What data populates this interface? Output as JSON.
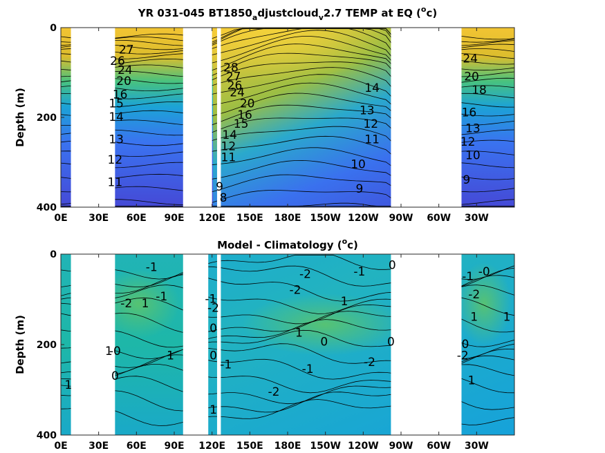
{
  "chart_data": [
    {
      "type": "heatmap",
      "title": "YR 031-045 BT1850_adjustcloud_v2.7 TEMP at EQ (°c)",
      "ylabel": "Depth (m)",
      "x_ticks": [
        "0E",
        "30E",
        "60E",
        "90E",
        "120E",
        "150E",
        "180E",
        "150W",
        "120W",
        "90W",
        "60W",
        "30W"
      ],
      "y_ticks": [
        "0",
        "200",
        "400"
      ],
      "xlim_deg_east": [
        0,
        360
      ],
      "ylim_m": [
        0,
        400
      ],
      "land_gaps_deg_east": [
        [
          8,
          43
        ],
        [
          97,
          120
        ],
        [
          124,
          127
        ],
        [
          262,
          318
        ]
      ],
      "colormap": "parula",
      "contour_labels": [
        {
          "text": "27",
          "lon": 52,
          "depth": 50
        },
        {
          "text": "26",
          "lon": 45,
          "depth": 75
        },
        {
          "text": "24",
          "lon": 51,
          "depth": 95
        },
        {
          "text": "20",
          "lon": 50,
          "depth": 120
        },
        {
          "text": "16",
          "lon": 47,
          "depth": 150
        },
        {
          "text": "15",
          "lon": 44,
          "depth": 170
        },
        {
          "text": "14",
          "lon": 44,
          "depth": 200
        },
        {
          "text": "13",
          "lon": 44,
          "depth": 250
        },
        {
          "text": "12",
          "lon": 43,
          "depth": 295
        },
        {
          "text": "11",
          "lon": 43,
          "depth": 345
        },
        {
          "text": "28",
          "lon": 135,
          "depth": 90
        },
        {
          "text": "27",
          "lon": 137,
          "depth": 110
        },
        {
          "text": "26",
          "lon": 138,
          "depth": 130
        },
        {
          "text": "24",
          "lon": 140,
          "depth": 145
        },
        {
          "text": "20",
          "lon": 148,
          "depth": 170
        },
        {
          "text": "16",
          "lon": 146,
          "depth": 195
        },
        {
          "text": "15",
          "lon": 143,
          "depth": 215
        },
        {
          "text": "14",
          "lon": 134,
          "depth": 240
        },
        {
          "text": "12",
          "lon": 133,
          "depth": 265
        },
        {
          "text": "11",
          "lon": 133,
          "depth": 290
        },
        {
          "text": "9",
          "lon": 126,
          "depth": 355
        },
        {
          "text": "8",
          "lon": 129,
          "depth": 380
        },
        {
          "text": "14",
          "lon": 247,
          "depth": 135
        },
        {
          "text": "13",
          "lon": 243,
          "depth": 185
        },
        {
          "text": "12",
          "lon": 246,
          "depth": 215
        },
        {
          "text": "11",
          "lon": 247,
          "depth": 250
        },
        {
          "text": "10",
          "lon": 236,
          "depth": 305
        },
        {
          "text": "9",
          "lon": 237,
          "depth": 360
        },
        {
          "text": "24",
          "lon": 325,
          "depth": 70
        },
        {
          "text": "20",
          "lon": 326,
          "depth": 110
        },
        {
          "text": "18",
          "lon": 332,
          "depth": 140
        },
        {
          "text": "16",
          "lon": 324,
          "depth": 190
        },
        {
          "text": "13",
          "lon": 327,
          "depth": 225
        },
        {
          "text": "12",
          "lon": 323,
          "depth": 255
        },
        {
          "text": "10",
          "lon": 327,
          "depth": 285
        },
        {
          "text": "9",
          "lon": 322,
          "depth": 340
        }
      ]
    },
    {
      "type": "heatmap",
      "title": "Model - Climatology (°c)",
      "ylabel": "Depth (m)",
      "x_ticks": [
        "0E",
        "30E",
        "60E",
        "90E",
        "120E",
        "150E",
        "180E",
        "150W",
        "120W",
        "90W",
        "60W",
        "30W"
      ],
      "y_ticks": [
        "0",
        "200",
        "400"
      ],
      "xlim_deg_east": [
        0,
        360
      ],
      "ylim_m": [
        0,
        400
      ],
      "land_gaps_deg_east": [
        [
          8,
          43
        ],
        [
          97,
          117
        ],
        [
          124,
          127
        ],
        [
          262,
          318
        ]
      ],
      "colormap": "parula",
      "contour_labels": [
        {
          "text": "-1",
          "lon": 72,
          "depth": 30
        },
        {
          "text": "-2",
          "lon": 52,
          "depth": 110
        },
        {
          "text": "1",
          "lon": 67,
          "depth": 110
        },
        {
          "text": "-1",
          "lon": 80,
          "depth": 95
        },
        {
          "text": "1",
          "lon": 38,
          "depth": 215
        },
        {
          "text": "-0",
          "lon": 43,
          "depth": 215
        },
        {
          "text": "1",
          "lon": 87,
          "depth": 225
        },
        {
          "text": "0",
          "lon": 43,
          "depth": 270
        },
        {
          "text": "1",
          "lon": 6,
          "depth": 290
        },
        {
          "text": "-1",
          "lon": 119,
          "depth": 100
        },
        {
          "text": "-2",
          "lon": 121,
          "depth": 120
        },
        {
          "text": "0",
          "lon": 121,
          "depth": 165
        },
        {
          "text": "0",
          "lon": 121,
          "depth": 225
        },
        {
          "text": "-1",
          "lon": 131,
          "depth": 245
        },
        {
          "text": "1",
          "lon": 121,
          "depth": 345
        },
        {
          "text": "-2",
          "lon": 194,
          "depth": 45
        },
        {
          "text": "-1",
          "lon": 237,
          "depth": 40
        },
        {
          "text": "0",
          "lon": 263,
          "depth": 25
        },
        {
          "text": "-2",
          "lon": 186,
          "depth": 80
        },
        {
          "text": "1",
          "lon": 225,
          "depth": 105
        },
        {
          "text": "1",
          "lon": 189,
          "depth": 175
        },
        {
          "text": "0",
          "lon": 209,
          "depth": 195
        },
        {
          "text": "-1",
          "lon": 196,
          "depth": 255
        },
        {
          "text": "-2",
          "lon": 245,
          "depth": 240
        },
        {
          "text": "0",
          "lon": 262,
          "depth": 195
        },
        {
          "text": "-2",
          "lon": 169,
          "depth": 305
        },
        {
          "text": "-1",
          "lon": 323,
          "depth": 50
        },
        {
          "text": "-0",
          "lon": 336,
          "depth": 40
        },
        {
          "text": "-2",
          "lon": 328,
          "depth": 90
        },
        {
          "text": "1",
          "lon": 328,
          "depth": 140
        },
        {
          "text": "1",
          "lon": 354,
          "depth": 140
        },
        {
          "text": "-2",
          "lon": 319,
          "depth": 225
        },
        {
          "text": "0",
          "lon": 321,
          "depth": 200
        },
        {
          "text": "1",
          "lon": 326,
          "depth": 280
        }
      ]
    }
  ]
}
